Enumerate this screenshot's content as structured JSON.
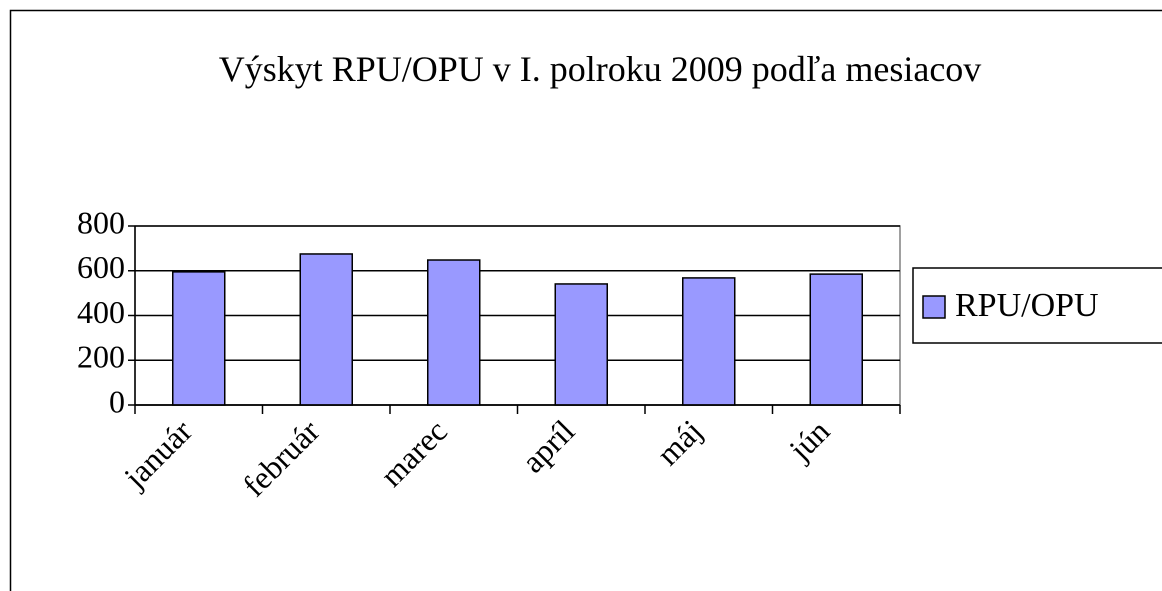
{
  "chart_data": {
    "type": "bar",
    "title": "Výskyt RPU/OPU v I. polroku 2009 podľa mesiacov",
    "categories": [
      "január",
      "február",
      "marec",
      "apríl",
      "máj",
      "jún"
    ],
    "series": [
      {
        "name": "RPU/OPU",
        "color": "#9999ff",
        "values": [
          595,
          675,
          648,
          541,
          568,
          585
        ]
      }
    ],
    "ylim": [
      0,
      800
    ],
    "yticks": [
      0,
      200,
      400,
      600,
      800
    ],
    "grid": true,
    "legend": "right"
  }
}
